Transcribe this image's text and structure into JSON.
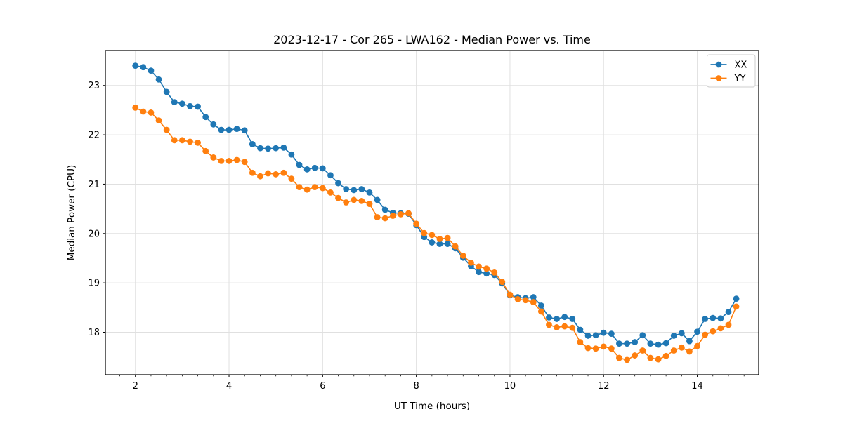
{
  "figure": {
    "background": "#ffffff"
  },
  "chart_data": {
    "type": "line",
    "title": "2023-12-17 - Cor 265 - LWA162 - Median Power vs. Time",
    "xlabel": "UT Time (hours)",
    "ylabel": "Median Power (CPU)",
    "xlim": [
      1.359,
      15.312
    ],
    "ylim": [
      17.14,
      23.707
    ],
    "xticks": [
      2,
      4,
      6,
      8,
      10,
      12,
      14
    ],
    "yticks": [
      18,
      19,
      20,
      21,
      22,
      23
    ],
    "x_minor_tick_step": 0.3333333,
    "grid": true,
    "grid_color": "#e0e0e0",
    "spine_color": "#000000",
    "legend_position": "upper right",
    "x": [
      2,
      2.167,
      2.333,
      2.5,
      2.667,
      2.833,
      3,
      3.167,
      3.333,
      3.5,
      3.667,
      3.833,
      4,
      4.167,
      4.333,
      4.5,
      4.667,
      4.833,
      5,
      5.167,
      5.333,
      5.5,
      5.667,
      5.833,
      6,
      6.167,
      6.333,
      6.5,
      6.667,
      6.833,
      7,
      7.167,
      7.333,
      7.5,
      7.667,
      7.833,
      8,
      8.167,
      8.333,
      8.5,
      8.667,
      8.833,
      9,
      9.167,
      9.333,
      9.5,
      9.667,
      9.833,
      10,
      10.167,
      10.333,
      10.5,
      10.667,
      10.833,
      11,
      11.167,
      11.333,
      11.5,
      11.667,
      11.833,
      12,
      12.167,
      12.333,
      12.5,
      12.667,
      12.833,
      13,
      13.167,
      13.333,
      13.5,
      13.667,
      13.833,
      14,
      14.167,
      14.333,
      14.5,
      14.667,
      14.833
    ],
    "series": [
      {
        "name": "XX",
        "color": "#1f77b4",
        "marker": "circle",
        "values": [
          23.4,
          23.37,
          23.3,
          23.12,
          22.87,
          22.66,
          22.63,
          22.58,
          22.57,
          22.36,
          22.21,
          22.1,
          22.1,
          22.12,
          22.09,
          21.81,
          21.73,
          21.72,
          21.73,
          21.74,
          21.6,
          21.39,
          21.3,
          21.33,
          21.32,
          21.18,
          21.02,
          20.9,
          20.88,
          20.9,
          20.83,
          20.68,
          20.48,
          20.42,
          20.41,
          20.4,
          20.17,
          19.93,
          19.82,
          19.79,
          19.79,
          19.7,
          19.51,
          19.34,
          19.22,
          19.19,
          19.16,
          18.99,
          18.75,
          18.71,
          18.69,
          18.71,
          18.54,
          18.3,
          18.27,
          18.31,
          18.27,
          18.05,
          17.93,
          17.94,
          17.99,
          17.97,
          17.77,
          17.77,
          17.8,
          17.94,
          17.77,
          17.75,
          17.78,
          17.93,
          17.98,
          17.82,
          18.01,
          18.27,
          18.29,
          18.28,
          18.41,
          18.68
        ]
      },
      {
        "name": "YY",
        "color": "#ff7f0e",
        "marker": "circle",
        "values": [
          22.55,
          22.47,
          22.45,
          22.29,
          22.1,
          21.89,
          21.89,
          21.86,
          21.84,
          21.67,
          21.54,
          21.47,
          21.47,
          21.49,
          21.45,
          21.23,
          21.16,
          21.22,
          21.2,
          21.23,
          21.11,
          20.94,
          20.89,
          20.94,
          20.92,
          20.83,
          20.72,
          20.63,
          20.68,
          20.66,
          20.6,
          20.33,
          20.31,
          20.36,
          20.39,
          20.41,
          20.2,
          20.01,
          19.97,
          19.89,
          19.91,
          19.74,
          19.55,
          19.41,
          19.33,
          19.29,
          19.21,
          19.02,
          18.76,
          18.67,
          18.65,
          18.61,
          18.42,
          18.15,
          18.1,
          18.12,
          18.09,
          17.8,
          17.68,
          17.67,
          17.71,
          17.67,
          17.48,
          17.44,
          17.53,
          17.63,
          17.48,
          17.45,
          17.52,
          17.63,
          17.69,
          17.61,
          17.72,
          17.95,
          18.02,
          18.08,
          18.15,
          18.52
        ]
      }
    ]
  },
  "legend": {
    "entries": [
      {
        "label": "XX",
        "color": "#1f77b4"
      },
      {
        "label": "YY",
        "color": "#ff7f0e"
      }
    ]
  }
}
